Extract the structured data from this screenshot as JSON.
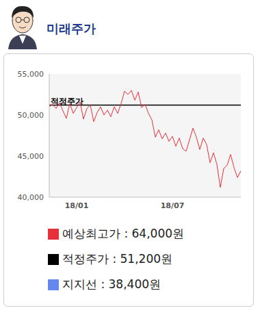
{
  "header": {
    "title": "미래주가"
  },
  "chart_data": {
    "type": "line",
    "grid": false,
    "categories": [
      null,
      null,
      null,
      null,
      null,
      null,
      null,
      null,
      "18/01",
      null,
      null,
      null,
      null,
      null,
      null,
      null,
      null,
      null,
      null,
      null,
      null,
      null,
      null,
      null,
      null,
      null,
      null,
      null,
      null,
      null,
      null,
      null,
      null,
      null,
      null,
      null,
      "18/07",
      null,
      null,
      null,
      null,
      null,
      null,
      null,
      null,
      null,
      null,
      null,
      null,
      null,
      null,
      null,
      null,
      null,
      null,
      null,
      null
    ],
    "values": [
      51000,
      51300,
      50800,
      51500,
      50500,
      49600,
      51400,
      50200,
      50900,
      51600,
      49500,
      50800,
      51200,
      49200,
      50300,
      51000,
      50000,
      50600,
      49800,
      51000,
      50200,
      51400,
      52900,
      52500,
      53000,
      51800,
      52800,
      50900,
      51300,
      50200,
      49400,
      47300,
      48200,
      47100,
      47800,
      46800,
      47400,
      46200,
      47200,
      45900,
      45600,
      47000,
      48400,
      47300,
      45800,
      47200,
      46400,
      44200,
      45400,
      44000,
      41200,
      43500,
      43900,
      45200,
      43600,
      42400,
      43200
    ],
    "color": "#e8303a",
    "ylim": [
      40000,
      55000
    ],
    "yticks": [
      {
        "value": 40000,
        "label": "40,000"
      },
      {
        "value": 45000,
        "label": "45,000"
      },
      {
        "value": 50000,
        "label": "50,000"
      },
      {
        "value": 55000,
        "label": "55,000"
      }
    ],
    "reference_line": {
      "label": "적정주가",
      "value": 51200,
      "color": "#000000"
    }
  },
  "legend_items": [
    {
      "text": "예상최고가 : 64,000원",
      "color": "#e8303a"
    },
    {
      "text": "적정주가 : 51,200원",
      "color": "#000000"
    },
    {
      "text": "지지선 : 38,400원",
      "color": "#6688ee"
    }
  ]
}
